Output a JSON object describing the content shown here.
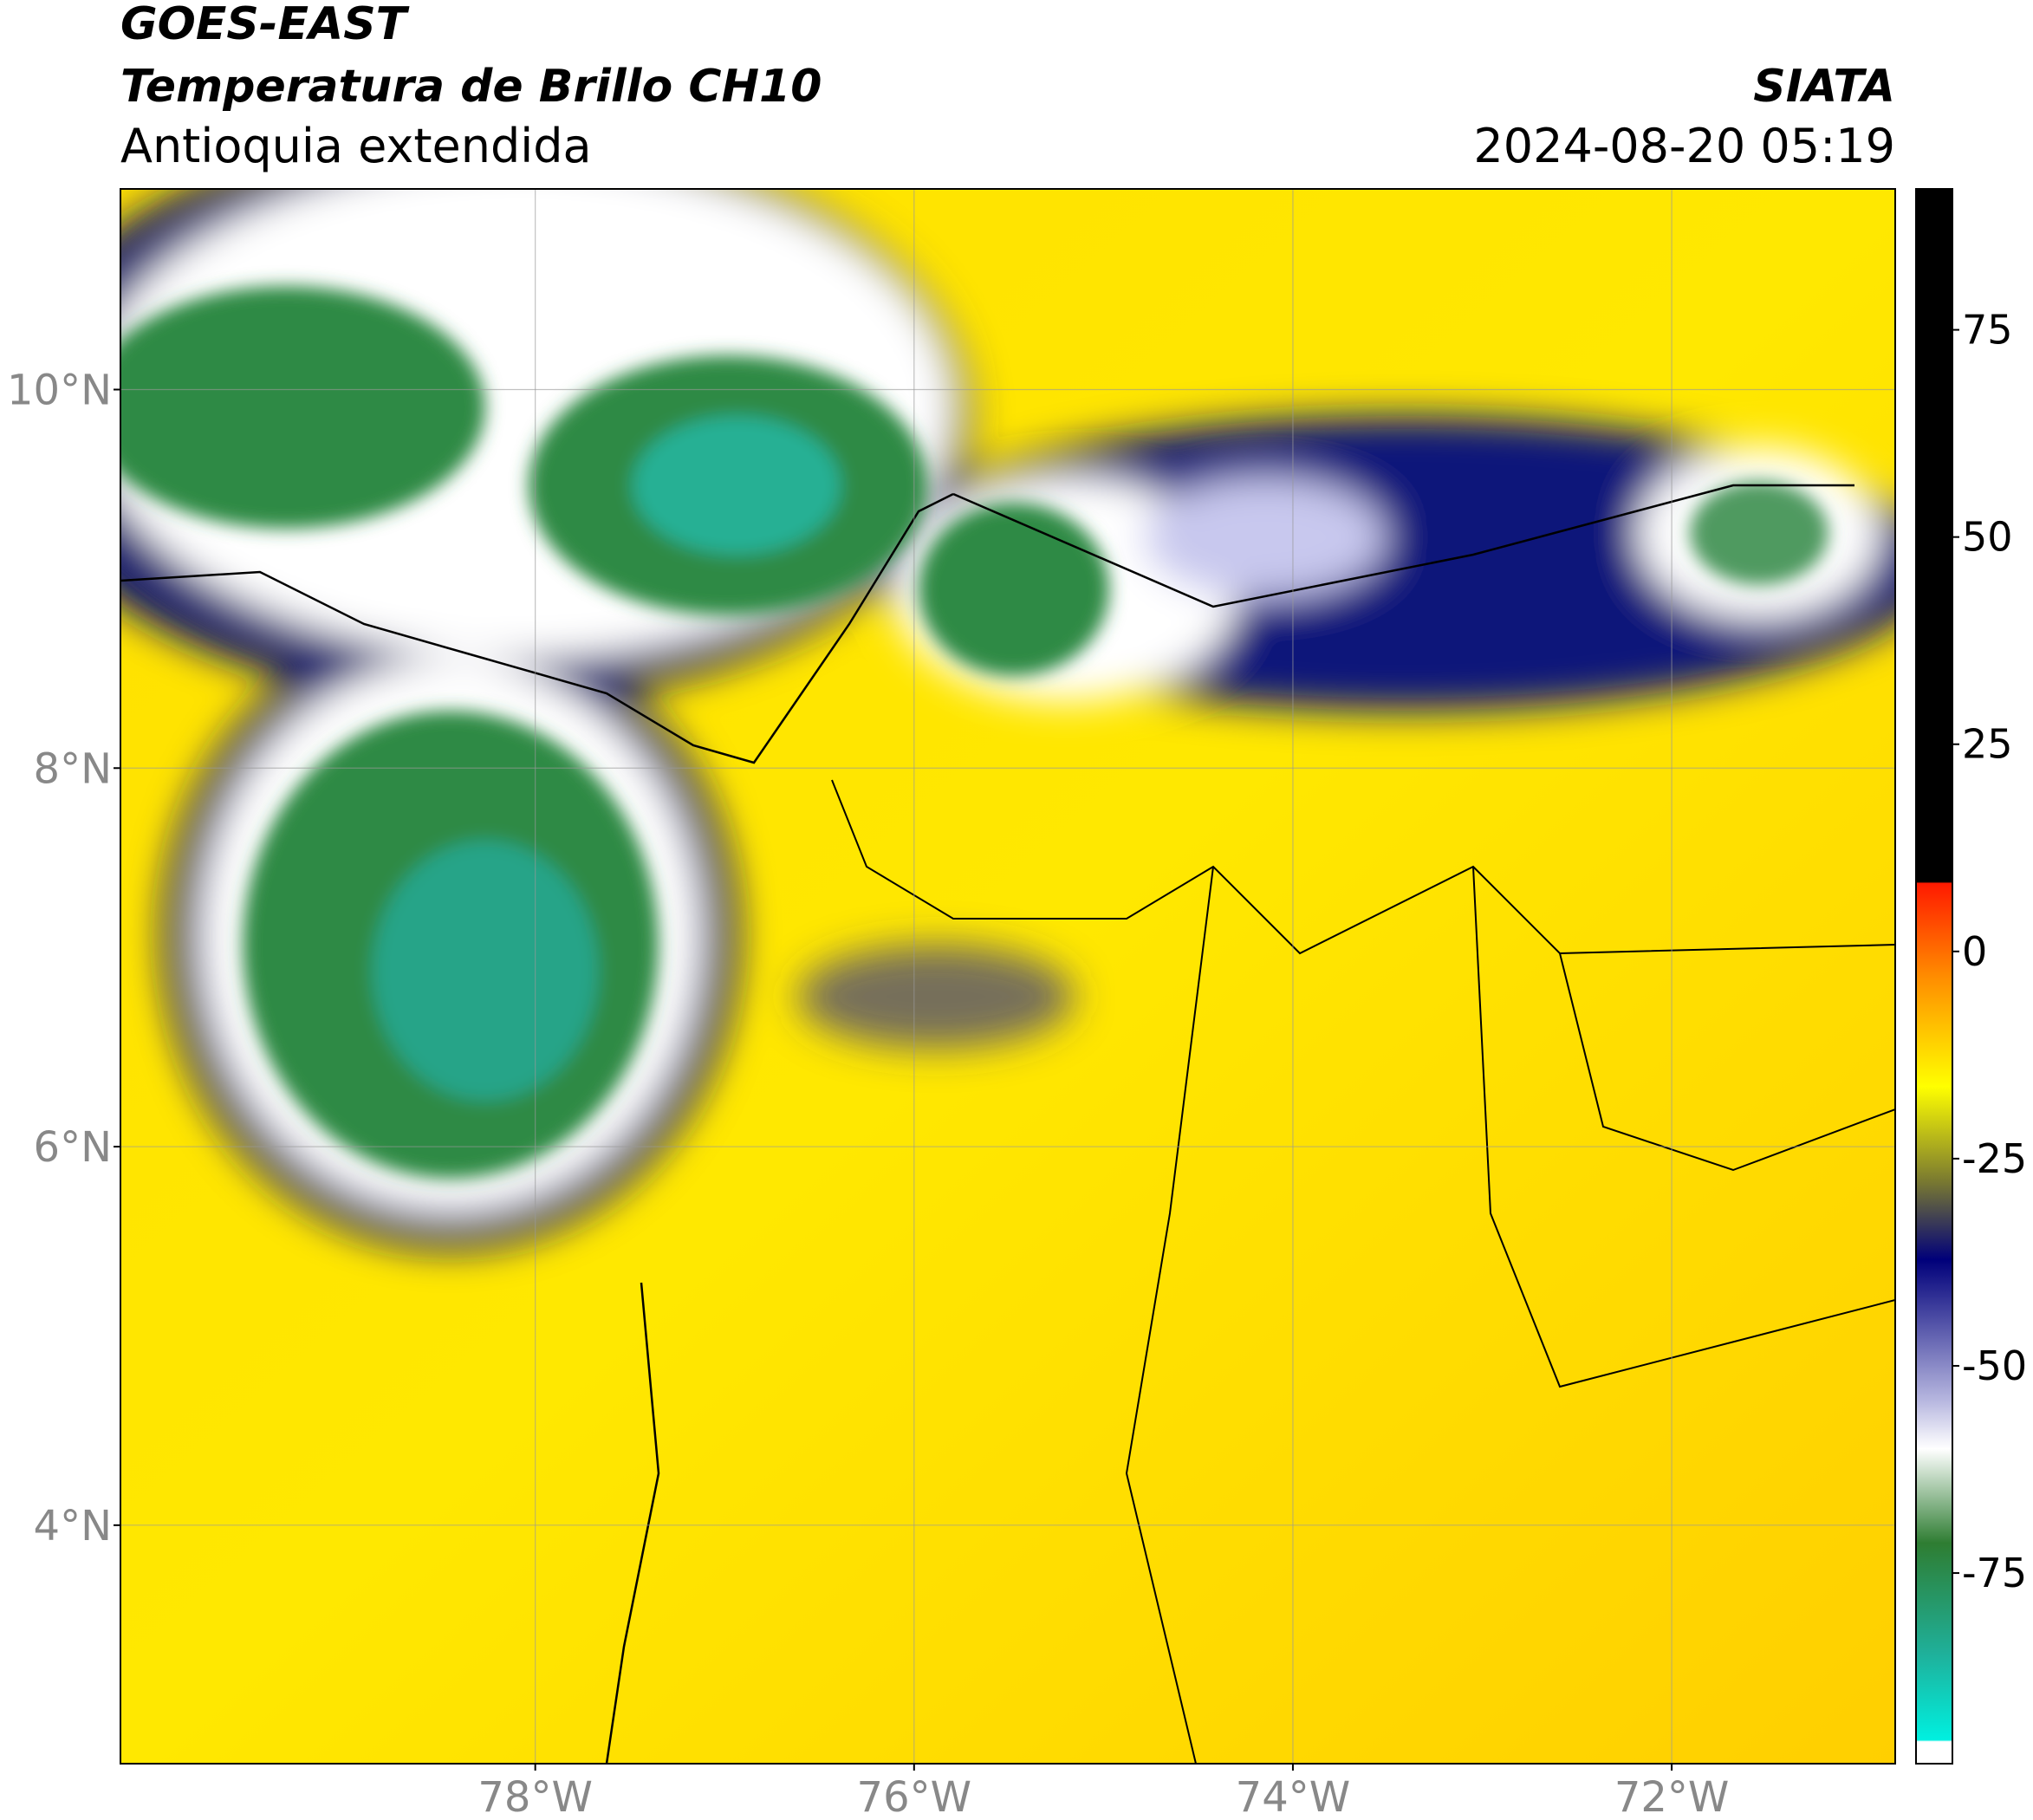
{
  "header": {
    "title": "GOES-EAST",
    "subtitle": "Temperatura de Brillo CH10",
    "region": "Antioquia extendida",
    "source": "SIATA",
    "datetime": "2024-08-20 05:19"
  },
  "map": {
    "xlim": [
      -80.19,
      -70.82
    ],
    "ylim": [
      2.74,
      11.06
    ],
    "xticks": [
      {
        "value": -78,
        "label": "78°W"
      },
      {
        "value": -76,
        "label": "76°W"
      },
      {
        "value": -74,
        "label": "74°W"
      },
      {
        "value": -72,
        "label": "72°W"
      }
    ],
    "yticks": [
      {
        "value": 10,
        "label": "10°N"
      },
      {
        "value": 8,
        "label": "8°N"
      },
      {
        "value": 6,
        "label": "6°N"
      },
      {
        "value": 4,
        "label": "4°N"
      }
    ],
    "grid": true
  },
  "colorbar": {
    "lim": [
      -98,
      92
    ],
    "ticks": [
      75,
      50,
      25,
      0,
      -25,
      -50,
      -75
    ]
  }
}
